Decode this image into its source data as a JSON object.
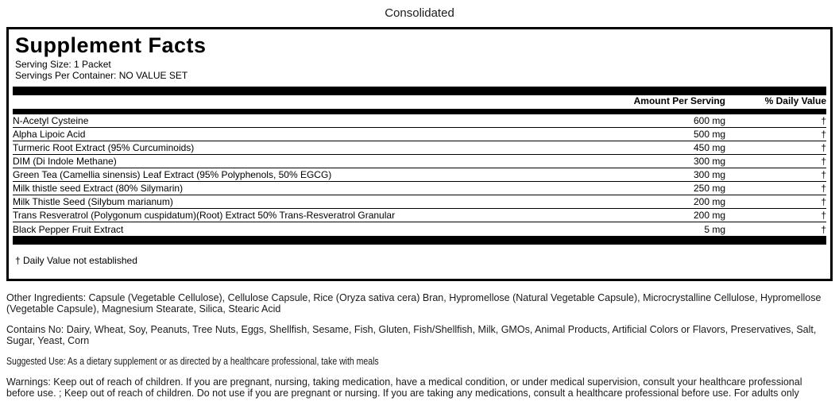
{
  "page": {
    "title": "Consolidated"
  },
  "panel": {
    "title": "Supplement Facts",
    "serving_size": "Serving Size: 1 Packet",
    "servings_per_container": "Servings Per Container: NO VALUE SET",
    "columns": {
      "amount": "Amount Per Serving",
      "daily_value": "% Daily Value"
    },
    "rows": [
      {
        "name": "N-Acetyl Cysteine",
        "amount": "600 mg",
        "dv": "†"
      },
      {
        "name": "Alpha Lipoic Acid",
        "amount": "500 mg",
        "dv": "†"
      },
      {
        "name": "Turmeric Root Extract (95% Curcuminoids)",
        "amount": "450 mg",
        "dv": "†"
      },
      {
        "name": "DIM (Di Indole Methane)",
        "amount": "300 mg",
        "dv": "†"
      },
      {
        "name": "Green Tea (Camellia sinensis) Leaf Extract (95% Polyphenols, 50% EGCG)",
        "amount": "300 mg",
        "dv": "†"
      },
      {
        "name": "Milk thistle seed Extract (80% Silymarin)",
        "amount": "250 mg",
        "dv": "†"
      },
      {
        "name": "Milk Thistle Seed (Silybum marianum)",
        "amount": "200 mg",
        "dv": "†"
      },
      {
        "name": "Trans Resveratrol (Polygonum cuspidatum)(Root) Extract 50% Trans-Resveratrol Granular",
        "amount": "200 mg",
        "dv": "†"
      },
      {
        "name": "Black Pepper Fruit Extract",
        "amount": "5 mg",
        "dv": "†"
      }
    ],
    "footnote": "† Daily Value not established"
  },
  "sections": {
    "other_ingredients": "Other Ingredients: Capsule (Vegetable Cellulose), Cellulose Capsule, Rice (Oryza sativa cera) Bran, Hypromellose (Natural Vegetable Capsule), Microcrystalline Cellulose, Hypromellose (Vegetable Capsule), Magnesium Stearate, Silica, Stearic Acid",
    "contains_no": "Contains No: Dairy, Wheat, Soy, Peanuts, Tree Nuts, Eggs, Shellfish, Sesame, Fish, Gluten, Fish/Shellfish, Milk, GMOs, Animal Products, Artificial Colors or Flavors, Preservatives, Salt, Sugar, Yeast, Corn",
    "suggested_use": "Suggested Use: As a dietary supplement or as directed by a healthcare professional, take with meals",
    "warnings": "Warnings: Keep out of reach of children. If you are pregnant, nursing, taking medication, have a medical condition, or under medical supervision, consult your healthcare professional before use. ; Keep out of reach of children. Do not use if you are pregnant or nursing. If you are taking any medications, consult a healthcare professional before use. For adults only"
  },
  "colors": {
    "background": "#ffffff",
    "text": "#000000",
    "bar": "#000000"
  }
}
